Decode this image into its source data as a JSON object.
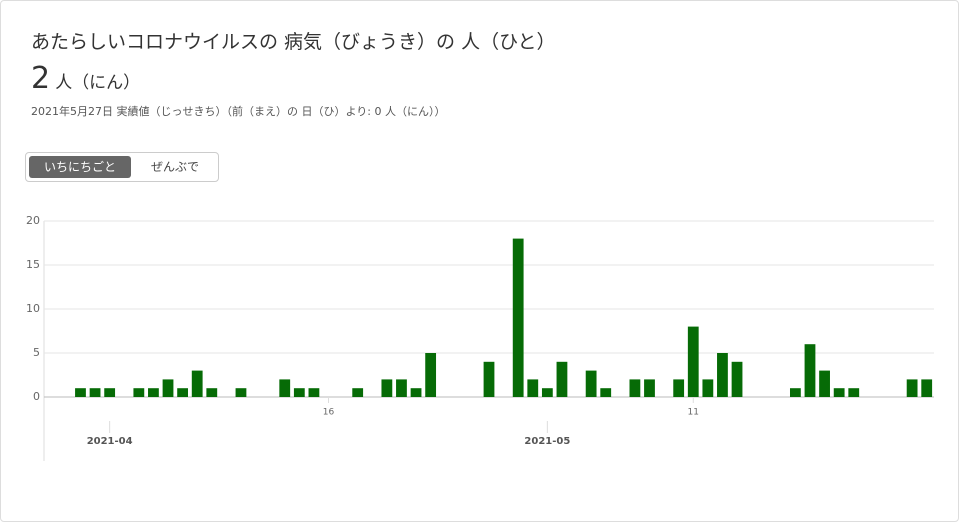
{
  "header": {
    "title": "あたらしいコロナウイルスの 病気（びょうき）の 人（ひと）",
    "count": "2",
    "unit": "人（にん）",
    "note": "2021年5月27日 実績値（じっせきち）（前（まえ）の 日（ひ）より: 0 人（にん））"
  },
  "tabs": [
    {
      "label": "いちにちごと",
      "active": true
    },
    {
      "label": "ぜんぶで",
      "active": false
    }
  ],
  "chart_data": {
    "type": "bar",
    "color": "#066b06",
    "x": [
      "2021-03-30",
      "2021-03-31",
      "2021-04-01",
      "2021-04-03",
      "2021-04-04",
      "2021-04-05",
      "2021-04-06",
      "2021-04-07",
      "2021-04-08",
      "2021-04-10",
      "2021-04-13",
      "2021-04-14",
      "2021-04-15",
      "2021-04-18",
      "2021-04-20",
      "2021-04-21",
      "2021-04-22",
      "2021-04-23",
      "2021-04-27",
      "2021-04-29",
      "2021-04-30",
      "2021-05-01",
      "2021-05-02",
      "2021-05-04",
      "2021-05-05",
      "2021-05-07",
      "2021-05-08",
      "2021-05-10",
      "2021-05-11",
      "2021-05-12",
      "2021-05-13",
      "2021-05-14",
      "2021-05-18",
      "2021-05-19",
      "2021-05-20",
      "2021-05-21",
      "2021-05-22",
      "2021-05-26",
      "2021-05-27"
    ],
    "values": [
      1,
      1,
      1,
      1,
      1,
      2,
      1,
      3,
      1,
      1,
      2,
      1,
      1,
      1,
      2,
      2,
      1,
      5,
      4,
      18,
      2,
      1,
      4,
      3,
      1,
      2,
      2,
      2,
      8,
      2,
      5,
      4,
      1,
      6,
      3,
      1,
      1,
      2,
      2
    ],
    "xlim": [
      "2021-03-28",
      "2021-05-28"
    ],
    "xticks": [
      {
        "value": "2021-04-16",
        "label": "16"
      },
      {
        "value": "2021-05-11",
        "label": "11"
      }
    ],
    "xticks_month": [
      {
        "value": "2021-04-01",
        "label": "2021-04"
      },
      {
        "value": "2021-05-01",
        "label": "2021-05"
      }
    ],
    "ylim": [
      0,
      20
    ],
    "yticks": [
      0,
      5,
      10,
      15,
      20
    ],
    "grid": true
  }
}
